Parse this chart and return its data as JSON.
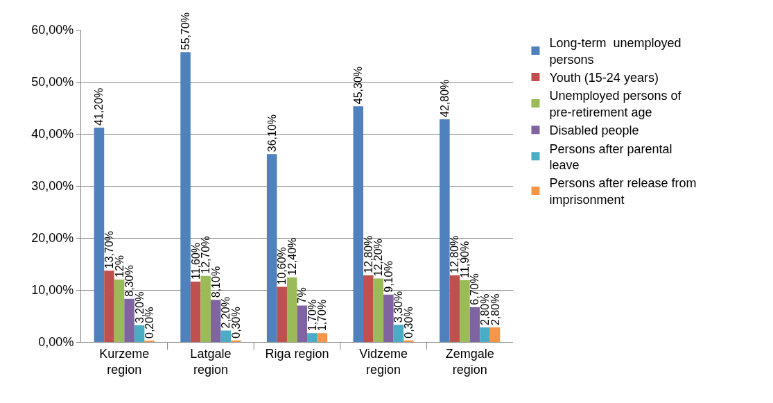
{
  "chart_data": {
    "type": "bar",
    "categories": [
      "Kurzeme region",
      "Latgale region",
      "Riga region",
      "Vidzeme region",
      "Zemgale region"
    ],
    "series": [
      {
        "name": "Long-term  unemployed persons",
        "color": "#4f81bd",
        "values": [
          41.2,
          55.7,
          36.1,
          45.3,
          42.8
        ],
        "value_labels": [
          "41,20%",
          "55,70%",
          "36,10%",
          "45,30%",
          "42,80%"
        ]
      },
      {
        "name": "Youth (15-24 years)",
        "color": "#c0504d",
        "values": [
          13.7,
          11.6,
          10.6,
          12.8,
          12.8
        ],
        "value_labels": [
          "13,70%",
          "11,60%",
          "10,60%",
          "12,80%",
          "12,80%"
        ]
      },
      {
        "name": "Unemployed persons of pre-retirement age",
        "color": "#9bbb59",
        "values": [
          12,
          12.7,
          12.4,
          12.2,
          11.9
        ],
        "value_labels": [
          "12%",
          "12,70%",
          "12,40%",
          "12,20%",
          "11,90%"
        ]
      },
      {
        "name": "Disabled people",
        "color": "#8064a2",
        "values": [
          8.3,
          8.1,
          7,
          9.1,
          6.7
        ],
        "value_labels": [
          "8,30%",
          "8,10%",
          "7%",
          "9,10%",
          "6,70%"
        ]
      },
      {
        "name": "Persons after parental leave",
        "color": "#4bacc6",
        "values": [
          3.2,
          2.2,
          1.7,
          3.3,
          2.8
        ],
        "value_labels": [
          "3,20%",
          "2,20%",
          "1,70%",
          "3,30%",
          "2,80%"
        ]
      },
      {
        "name": "Persons after release from imprisonment",
        "color": "#f79646",
        "values": [
          0.2,
          0.3,
          1.7,
          0.3,
          2.8
        ],
        "value_labels": [
          "0,20%",
          "0,30%",
          "1,70%",
          "0,30%",
          "2,80%"
        ]
      }
    ],
    "ylim": [
      0,
      60
    ],
    "yticks": [
      {
        "value": 0,
        "label": "0,00%"
      },
      {
        "value": 10,
        "label": "10,00%"
      },
      {
        "value": 20,
        "label": "20,00%"
      },
      {
        "value": 30,
        "label": "30,00%"
      },
      {
        "value": 40,
        "label": "40,00%"
      },
      {
        "value": 50,
        "label": "50,00%"
      },
      {
        "value": 60,
        "label": "60,00%"
      }
    ],
    "grid": "y",
    "legend": "right"
  }
}
